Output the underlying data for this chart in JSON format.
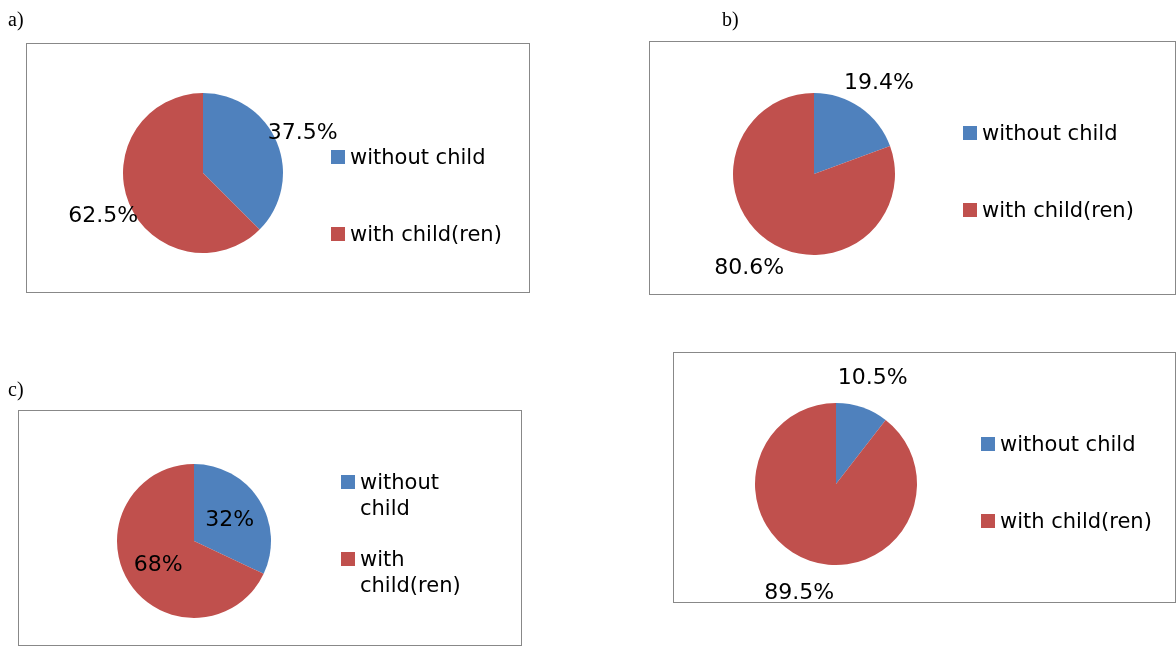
{
  "chart_data": [
    {
      "type": "pie",
      "title": "a)",
      "categories": [
        "without child",
        "with child(ren)"
      ],
      "values": [
        37.5,
        62.5
      ],
      "colors": [
        "#4f81bd",
        "#c0504d"
      ],
      "value_labels": [
        "37.5%",
        "62.5%"
      ],
      "legend": "right"
    },
    {
      "type": "pie",
      "title": "b)",
      "categories": [
        "without child",
        "with child(ren)"
      ],
      "values": [
        19.4,
        80.6
      ],
      "colors": [
        "#4f81bd",
        "#c0504d"
      ],
      "value_labels": [
        "19.4%",
        "80.6%"
      ],
      "legend": "right"
    },
    {
      "type": "pie",
      "title": "c)",
      "categories": [
        "without child",
        "with child(ren)"
      ],
      "values": [
        32,
        68
      ],
      "colors": [
        "#4f81bd",
        "#c0504d"
      ],
      "value_labels": [
        "32%",
        "68%"
      ],
      "legend": "right"
    },
    {
      "type": "pie",
      "categories": [
        "without child",
        "with child(ren)"
      ],
      "values": [
        10.5,
        89.5
      ],
      "colors": [
        "#4f81bd",
        "#c0504d"
      ],
      "value_labels": [
        "10.5%",
        "89.5%"
      ],
      "legend": "right"
    }
  ]
}
